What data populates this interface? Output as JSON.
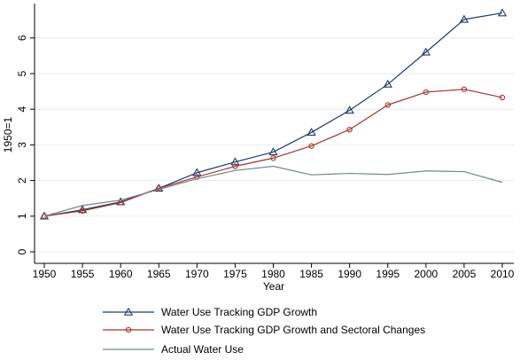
{
  "chart_data": {
    "type": "line",
    "xlabel": "Year",
    "ylabel": "1950=1",
    "xlim": [
      1950,
      2010
    ],
    "ylim": [
      0,
      7
    ],
    "x_ticks": [
      1950,
      1955,
      1960,
      1965,
      1970,
      1975,
      1980,
      1985,
      1990,
      1995,
      2000,
      2005,
      2010
    ],
    "y_ticks": [
      0,
      1,
      2,
      3,
      4,
      5,
      6
    ],
    "grid": "horizontal",
    "legend_position": "bottom",
    "x": [
      1950,
      1955,
      1960,
      1965,
      1970,
      1975,
      1980,
      1985,
      1990,
      1995,
      2000,
      2005,
      2010
    ],
    "series": [
      {
        "name": "Water Use Tracking GDP Growth",
        "color": "#1f3a6e",
        "marker": "triangle",
        "values": [
          1.0,
          1.18,
          1.4,
          1.78,
          2.22,
          2.52,
          2.8,
          3.35,
          3.97,
          4.7,
          5.6,
          6.52,
          6.7
        ]
      },
      {
        "name": "Water Use Tracking GDP Growth and Sectoral Changes",
        "color": "#a8322d",
        "marker": "circle",
        "values": [
          1.0,
          1.15,
          1.38,
          1.78,
          2.1,
          2.4,
          2.63,
          2.97,
          3.43,
          4.12,
          4.48,
          4.56,
          4.33
        ]
      },
      {
        "name": "Actual Water Use",
        "color": "#6e8b8b",
        "marker": "none",
        "values": [
          1.0,
          1.3,
          1.45,
          1.75,
          2.05,
          2.28,
          2.4,
          2.16,
          2.2,
          2.17,
          2.27,
          2.25,
          1.95
        ]
      }
    ]
  }
}
